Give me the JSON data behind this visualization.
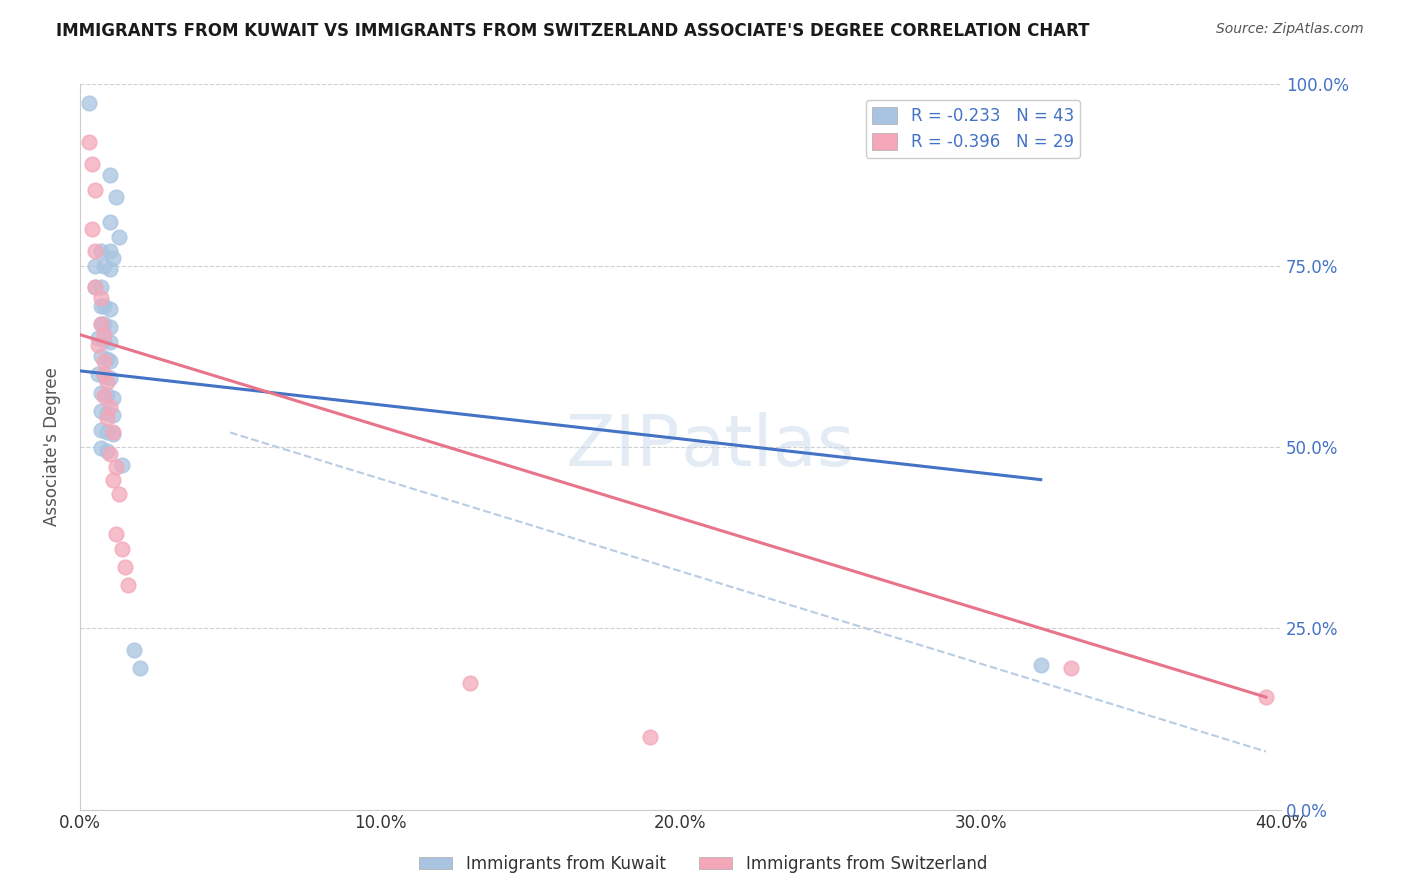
{
  "title": "IMMIGRANTS FROM KUWAIT VS IMMIGRANTS FROM SWITZERLAND ASSOCIATE'S DEGREE CORRELATION CHART",
  "source": "Source: ZipAtlas.com",
  "ylabel": "Associate's Degree",
  "xlim": [
    0.0,
    0.4
  ],
  "ylim": [
    0.0,
    1.0
  ],
  "xticks": [
    0.0,
    0.1,
    0.2,
    0.3,
    0.4
  ],
  "xticklabels": [
    "0.0%",
    "10.0%",
    "20.0%",
    "30.0%",
    "40.0%"
  ],
  "yticks": [
    0.0,
    0.25,
    0.5,
    0.75,
    1.0
  ],
  "yticklabels": [
    "0.0%",
    "25.0%",
    "50.0%",
    "75.0%",
    "100.0%"
  ],
  "kuwait_color": "#a8c4e0",
  "switzerland_color": "#f4a7b9",
  "kuwait_scatter": [
    [
      0.003,
      0.975
    ],
    [
      0.01,
      0.875
    ],
    [
      0.012,
      0.845
    ],
    [
      0.01,
      0.81
    ],
    [
      0.013,
      0.79
    ],
    [
      0.007,
      0.77
    ],
    [
      0.01,
      0.77
    ],
    [
      0.011,
      0.76
    ],
    [
      0.005,
      0.75
    ],
    [
      0.008,
      0.75
    ],
    [
      0.01,
      0.745
    ],
    [
      0.005,
      0.72
    ],
    [
      0.007,
      0.72
    ],
    [
      0.007,
      0.695
    ],
    [
      0.008,
      0.695
    ],
    [
      0.01,
      0.69
    ],
    [
      0.007,
      0.67
    ],
    [
      0.008,
      0.67
    ],
    [
      0.01,
      0.665
    ],
    [
      0.006,
      0.65
    ],
    [
      0.008,
      0.648
    ],
    [
      0.01,
      0.645
    ],
    [
      0.007,
      0.625
    ],
    [
      0.009,
      0.622
    ],
    [
      0.01,
      0.618
    ],
    [
      0.006,
      0.6
    ],
    [
      0.008,
      0.598
    ],
    [
      0.01,
      0.595
    ],
    [
      0.007,
      0.575
    ],
    [
      0.009,
      0.572
    ],
    [
      0.011,
      0.568
    ],
    [
      0.007,
      0.55
    ],
    [
      0.009,
      0.547
    ],
    [
      0.011,
      0.544
    ],
    [
      0.007,
      0.524
    ],
    [
      0.009,
      0.521
    ],
    [
      0.011,
      0.518
    ],
    [
      0.007,
      0.498
    ],
    [
      0.009,
      0.495
    ],
    [
      0.014,
      0.475
    ],
    [
      0.018,
      0.22
    ],
    [
      0.02,
      0.195
    ],
    [
      0.32,
      0.2
    ]
  ],
  "switzerland_scatter": [
    [
      0.003,
      0.92
    ],
    [
      0.004,
      0.89
    ],
    [
      0.005,
      0.855
    ],
    [
      0.004,
      0.8
    ],
    [
      0.005,
      0.77
    ],
    [
      0.005,
      0.72
    ],
    [
      0.007,
      0.705
    ],
    [
      0.007,
      0.67
    ],
    [
      0.008,
      0.655
    ],
    [
      0.006,
      0.64
    ],
    [
      0.008,
      0.618
    ],
    [
      0.008,
      0.6
    ],
    [
      0.009,
      0.59
    ],
    [
      0.008,
      0.57
    ],
    [
      0.01,
      0.555
    ],
    [
      0.009,
      0.54
    ],
    [
      0.011,
      0.52
    ],
    [
      0.01,
      0.49
    ],
    [
      0.012,
      0.472
    ],
    [
      0.011,
      0.455
    ],
    [
      0.013,
      0.435
    ],
    [
      0.012,
      0.38
    ],
    [
      0.014,
      0.36
    ],
    [
      0.015,
      0.335
    ],
    [
      0.016,
      0.31
    ],
    [
      0.13,
      0.175
    ],
    [
      0.19,
      0.1
    ],
    [
      0.33,
      0.195
    ],
    [
      0.395,
      0.155
    ]
  ],
  "kuwait_line_color": "#4472c4",
  "switzerland_line_color": "#e8748a",
  "dashed_line_color": "#b8cce4",
  "kuwait_line": [
    [
      0.0,
      0.605
    ],
    [
      0.32,
      0.455
    ]
  ],
  "switzerland_line": [
    [
      0.0,
      0.655
    ],
    [
      0.395,
      0.155
    ]
  ],
  "dashed_line": [
    [
      0.05,
      0.52
    ],
    [
      0.395,
      0.08
    ]
  ],
  "legend_label_kuwait": "R = -0.233   N = 43",
  "legend_label_switzerland": "R = -0.396   N = 29",
  "background_color": "#ffffff",
  "grid_color": "#d0d0d0",
  "watermark": "ZIPatlas",
  "watermark_zip_color": "#c8d8ec",
  "watermark_atlas_color": "#c8d8ec"
}
